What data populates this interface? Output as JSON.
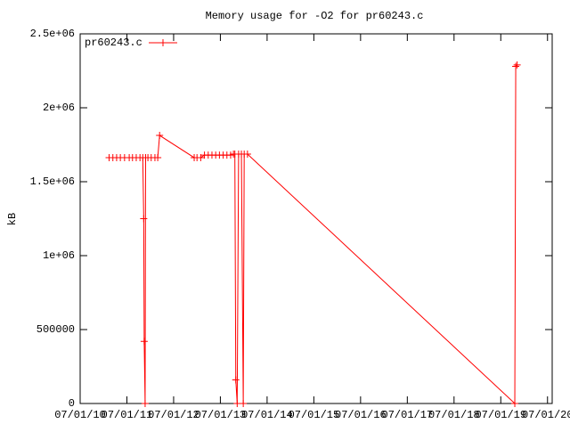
{
  "chart_data": {
    "type": "line",
    "title": "Memory usage for -O2 for pr60243.c",
    "ylabel": "kB",
    "x": [
      0.62,
      0.7,
      0.78,
      0.86,
      0.95,
      1.05,
      1.12,
      1.2,
      1.28,
      1.34,
      1.36,
      1.37,
      1.39,
      1.4,
      1.45,
      1.52,
      1.6,
      1.66,
      1.7,
      2.44,
      2.5,
      2.58,
      2.66,
      2.74,
      2.82,
      2.9,
      2.98,
      3.06,
      3.14,
      3.22,
      3.28,
      3.31,
      3.33,
      3.36,
      3.39,
      3.45,
      3.49,
      3.51,
      3.58,
      9.3,
      9.32,
      9.35
    ],
    "series": [
      {
        "name": "pr60243.c",
        "color": "#ff0000",
        "values": [
          1663000,
          1663000,
          1663000,
          1663000,
          1663000,
          1663000,
          1663000,
          1663000,
          1663000,
          1663000,
          1250000,
          420000,
          0,
          1663000,
          1663000,
          1663000,
          1663000,
          1663000,
          1813000,
          1663000,
          1663000,
          1663000,
          1680000,
          1680000,
          1680000,
          1680000,
          1680000,
          1680000,
          1680000,
          1680000,
          1687000,
          1687000,
          160000,
          0,
          1687000,
          1687000,
          0,
          1687000,
          1687000,
          0,
          2280000,
          2290000
        ]
      }
    ],
    "xlim": [
      0,
      10.1
    ],
    "xticks": [
      {
        "value": 0,
        "label": "07/01/10"
      },
      {
        "value": 1,
        "label": "07/01/11"
      },
      {
        "value": 2,
        "label": "07/01/12"
      },
      {
        "value": 3,
        "label": "07/01/13"
      },
      {
        "value": 4,
        "label": "07/01/14"
      },
      {
        "value": 5,
        "label": "07/01/15"
      },
      {
        "value": 6,
        "label": "07/01/16"
      },
      {
        "value": 7,
        "label": "07/01/17"
      },
      {
        "value": 8,
        "label": "07/01/18"
      },
      {
        "value": 9,
        "label": "07/01/19"
      },
      {
        "value": 10,
        "label": "07/01/20"
      }
    ],
    "ylim": [
      0,
      2500000
    ],
    "yticks": [
      0,
      500000,
      {
        "value": 1000000,
        "label": "1e+06"
      },
      {
        "value": 1500000,
        "label": "1.5e+06"
      },
      {
        "value": 2000000,
        "label": "2e+06"
      },
      {
        "value": 2500000,
        "label": "2.5e+06"
      }
    ],
    "grid": false,
    "legend": "top-left"
  }
}
